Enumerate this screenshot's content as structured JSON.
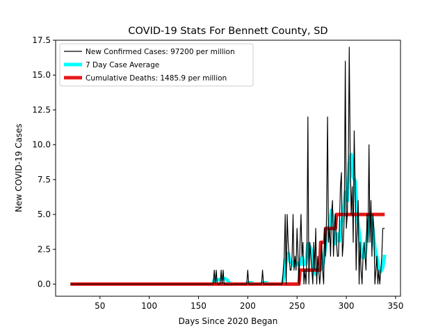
{
  "chart_data": {
    "type": "line",
    "title": "COVID-19 Stats For Bennett County, SD",
    "xlabel": "Days Since 2020 Began",
    "ylabel": "New COVID-19 Cases",
    "xlim": [
      5,
      355
    ],
    "ylim": [
      -0.87,
      17.5
    ],
    "x_ticks": [
      50,
      100,
      150,
      200,
      250,
      300,
      350
    ],
    "x_tick_labels": [
      "50",
      "100",
      "150",
      "200",
      "250",
      "300",
      "350"
    ],
    "y_ticks": [
      0,
      2.5,
      5,
      7.5,
      10,
      12.5,
      15,
      17.5
    ],
    "y_tick_labels": [
      "0.0",
      "2.5",
      "5.0",
      "7.5",
      "10.0",
      "12.5",
      "15.0",
      "17.5"
    ],
    "grid": false,
    "legend_position": "top-left",
    "series": [
      {
        "name": "New Confirmed Cases: 97200 per million",
        "color": "#000000",
        "points": [
          [
            20,
            0
          ],
          [
            165,
            0
          ],
          [
            166,
            1
          ],
          [
            167,
            0
          ],
          [
            168,
            1
          ],
          [
            169,
            0
          ],
          [
            172,
            0
          ],
          [
            173,
            1
          ],
          [
            174,
            0
          ],
          [
            175,
            1
          ],
          [
            176,
            0
          ],
          [
            180,
            0
          ],
          [
            181,
            0
          ],
          [
            198,
            0
          ],
          [
            199,
            0
          ],
          [
            200,
            1
          ],
          [
            201,
            0
          ],
          [
            213,
            0
          ],
          [
            214,
            0
          ],
          [
            215,
            1
          ],
          [
            216,
            0
          ],
          [
            235,
            0
          ],
          [
            236,
            1
          ],
          [
            237,
            2
          ],
          [
            238,
            5
          ],
          [
            239,
            0
          ],
          [
            240,
            5
          ],
          [
            241,
            3
          ],
          [
            242,
            2
          ],
          [
            243,
            1
          ],
          [
            244,
            1
          ],
          [
            245,
            2
          ],
          [
            246,
            5
          ],
          [
            247,
            1
          ],
          [
            248,
            2
          ],
          [
            249,
            1
          ],
          [
            250,
            4
          ],
          [
            251,
            2
          ],
          [
            252,
            0
          ],
          [
            253,
            3
          ],
          [
            254,
            5
          ],
          [
            255,
            2
          ],
          [
            256,
            3
          ],
          [
            257,
            0
          ],
          [
            258,
            1
          ],
          [
            259,
            0
          ],
          [
            260,
            2
          ],
          [
            261,
            12
          ],
          [
            262,
            0
          ],
          [
            263,
            3
          ],
          [
            264,
            2
          ],
          [
            265,
            1
          ],
          [
            266,
            0
          ],
          [
            267,
            3
          ],
          [
            268,
            1
          ],
          [
            269,
            4
          ],
          [
            270,
            0
          ],
          [
            271,
            2
          ],
          [
            272,
            1
          ],
          [
            273,
            0
          ],
          [
            274,
            1
          ],
          [
            275,
            3
          ],
          [
            276,
            1
          ],
          [
            277,
            0
          ],
          [
            278,
            4
          ],
          [
            279,
            2
          ],
          [
            280,
            5
          ],
          [
            281,
            12
          ],
          [
            282,
            3
          ],
          [
            283,
            4
          ],
          [
            284,
            2
          ],
          [
            285,
            5
          ],
          [
            286,
            6
          ],
          [
            287,
            2
          ],
          [
            288,
            4
          ],
          [
            289,
            5
          ],
          [
            290,
            3
          ],
          [
            291,
            2
          ],
          [
            292,
            2
          ],
          [
            293,
            4
          ],
          [
            294,
            7
          ],
          [
            295,
            8
          ],
          [
            296,
            2
          ],
          [
            297,
            3
          ],
          [
            298,
            5
          ],
          [
            299,
            16
          ],
          [
            300,
            4
          ],
          [
            301,
            5
          ],
          [
            302,
            8
          ],
          [
            303,
            17
          ],
          [
            304,
            9
          ],
          [
            305,
            5
          ],
          [
            306,
            7
          ],
          [
            307,
            3
          ],
          [
            308,
            11
          ],
          [
            309,
            7
          ],
          [
            310,
            1
          ],
          [
            311,
            4
          ],
          [
            312,
            6
          ],
          [
            313,
            0
          ],
          [
            314,
            3
          ],
          [
            315,
            1
          ],
          [
            316,
            0
          ],
          [
            317,
            2
          ],
          [
            318,
            3
          ],
          [
            319,
            2
          ],
          [
            320,
            1
          ],
          [
            321,
            5
          ],
          [
            322,
            3
          ],
          [
            323,
            10
          ],
          [
            324,
            3
          ],
          [
            325,
            6
          ],
          [
            326,
            2
          ],
          [
            327,
            5
          ],
          [
            328,
            4
          ],
          [
            329,
            0
          ],
          [
            330,
            1
          ],
          [
            331,
            2
          ],
          [
            332,
            0
          ],
          [
            333,
            1
          ],
          [
            334,
            0
          ],
          [
            335,
            1
          ],
          [
            336,
            2
          ],
          [
            337,
            4
          ],
          [
            338,
            4
          ],
          [
            339,
            4
          ]
        ]
      },
      {
        "name": "7 Day Case Average",
        "color": "#00ffff",
        "points": [
          [
            20,
            0
          ],
          [
            165,
            0
          ],
          [
            166,
            0.3
          ],
          [
            170,
            0.3
          ],
          [
            174,
            0.4
          ],
          [
            177,
            0.4
          ],
          [
            179,
            0.3
          ],
          [
            181,
            0.1
          ],
          [
            183,
            0
          ],
          [
            198,
            0
          ],
          [
            200,
            0.1
          ],
          [
            204,
            0.1
          ],
          [
            206,
            0
          ],
          [
            213,
            0
          ],
          [
            215,
            0.1
          ],
          [
            219,
            0.1
          ],
          [
            221,
            0
          ],
          [
            235,
            0
          ],
          [
            237,
            0.7
          ],
          [
            239,
            1.7
          ],
          [
            241,
            2.2
          ],
          [
            243,
            1.6
          ],
          [
            245,
            1.6
          ],
          [
            247,
            1.3
          ],
          [
            249,
            1.4
          ],
          [
            251,
            1.5
          ],
          [
            253,
            1.4
          ],
          [
            255,
            1.9
          ],
          [
            257,
            1.4
          ],
          [
            259,
            1.5
          ],
          [
            261,
            2.9
          ],
          [
            263,
            2.7
          ],
          [
            265,
            2.4
          ],
          [
            267,
            1.0
          ],
          [
            269,
            0.7
          ],
          [
            271,
            1.1
          ],
          [
            273,
            1.0
          ],
          [
            275,
            1.1
          ],
          [
            277,
            1.6
          ],
          [
            279,
            2.9
          ],
          [
            281,
            3.6
          ],
          [
            283,
            4.3
          ],
          [
            285,
            5.3
          ],
          [
            287,
            4.6
          ],
          [
            289,
            2.9
          ],
          [
            291,
            3.6
          ],
          [
            293,
            3.1
          ],
          [
            295,
            4.4
          ],
          [
            297,
            4.9
          ],
          [
            299,
            6.6
          ],
          [
            301,
            6.0
          ],
          [
            303,
            8.7
          ],
          [
            305,
            9.3
          ],
          [
            307,
            7.7
          ],
          [
            309,
            7.4
          ],
          [
            311,
            5.1
          ],
          [
            313,
            3.7
          ],
          [
            315,
            2.6
          ],
          [
            317,
            1.9
          ],
          [
            319,
            2.1
          ],
          [
            321,
            3.3
          ],
          [
            323,
            4.4
          ],
          [
            325,
            5.0
          ],
          [
            327,
            3.9
          ],
          [
            329,
            2.6
          ],
          [
            331,
            1.9
          ],
          [
            333,
            1.1
          ],
          [
            335,
            0.9
          ],
          [
            337,
            1.2
          ],
          [
            339,
            2.1
          ]
        ]
      },
      {
        "name": "Cumulative Deaths: 1485.9 per million",
        "color": "#e61919",
        "points": [
          [
            20,
            0
          ],
          [
            252,
            0
          ],
          [
            253,
            1
          ],
          [
            273,
            1
          ],
          [
            274,
            3
          ],
          [
            278,
            3
          ],
          [
            279,
            4
          ],
          [
            289,
            4
          ],
          [
            290,
            5
          ],
          [
            339,
            5
          ]
        ]
      }
    ]
  }
}
